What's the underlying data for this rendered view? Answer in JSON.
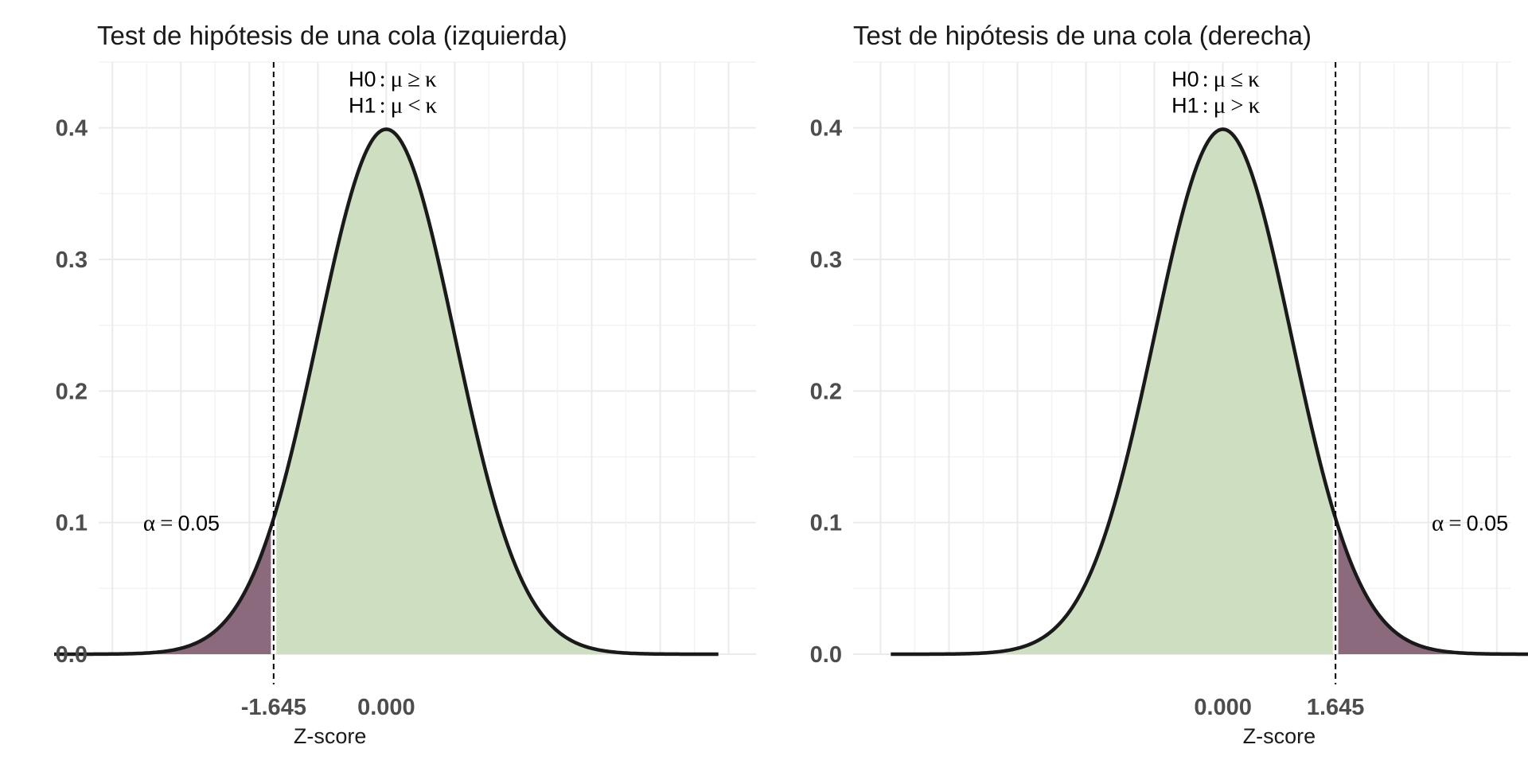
{
  "chart_data": [
    {
      "type": "area",
      "title": "Test de hipótesis de una cola (izquierda)",
      "xlabel": "Z-score",
      "ylabel": "",
      "xlim": [
        -4.2,
        5.4
      ],
      "curve_range": [
        -4.85,
        4.85
      ],
      "ylim": [
        0,
        0.45
      ],
      "yticks": [
        0.0,
        0.1,
        0.2,
        0.3,
        0.4
      ],
      "ytick_labels": [
        "0.0",
        "0.1",
        "0.2",
        "0.3",
        "0.4"
      ],
      "xticks": [
        -1.645,
        0.0
      ],
      "xtick_labels": [
        "-1.645",
        "0.000"
      ],
      "grid": true,
      "critical_value": -1.645,
      "rejection_side": "left",
      "alpha_label": {
        "alpha": "α",
        "eq": "=",
        "value": "0.05",
        "x": -3.55,
        "y": 0.1
      },
      "hypotheses": {
        "x": -0.55,
        "h0": {
          "name": "H0",
          "colon": ":",
          "mu": "μ",
          "op": "≥",
          "k": "κ",
          "y": 0.4375
        },
        "h1": {
          "name": "H1",
          "colon": ":",
          "mu": "μ",
          "op": "<",
          "k": "κ",
          "y": 0.4175
        }
      },
      "series": [
        {
          "values_desc": "standard normal density",
          "mean": 0,
          "sd": 1
        }
      ],
      "colors": {
        "accept": "#cddfc0",
        "reject": "#8b6a7e",
        "curve": "#1a1a1a",
        "grid": "#ebebeb"
      }
    },
    {
      "type": "area",
      "title": "Test de hipótesis de una cola (derecha)",
      "xlabel": "Z-score",
      "ylabel": "",
      "xlim": [
        -5.4,
        4.2
      ],
      "curve_range": [
        -4.85,
        4.85
      ],
      "ylim": [
        0,
        0.45
      ],
      "yticks": [
        0.0,
        0.1,
        0.2,
        0.3,
        0.4
      ],
      "ytick_labels": [
        "0.0",
        "0.1",
        "0.2",
        "0.3",
        "0.4"
      ],
      "xticks": [
        0.0,
        1.645
      ],
      "xtick_labels": [
        "0.000",
        "1.645"
      ],
      "grid": true,
      "critical_value": 1.645,
      "rejection_side": "right",
      "alpha_label": {
        "alpha": "α",
        "eq": "=",
        "value": "0.05",
        "x": 3.05,
        "y": 0.1
      },
      "hypotheses": {
        "x": -0.75,
        "h0": {
          "name": "H0",
          "colon": ":",
          "mu": "μ",
          "op": "≤",
          "k": "κ",
          "y": 0.4375
        },
        "h1": {
          "name": "H1",
          "colon": ":",
          "mu": "μ",
          "op": ">",
          "k": "κ",
          "y": 0.4175
        }
      },
      "series": [
        {
          "values_desc": "standard normal density",
          "mean": 0,
          "sd": 1
        }
      ],
      "colors": {
        "accept": "#cddfc0",
        "reject": "#8b6a7e",
        "curve": "#1a1a1a",
        "grid": "#ebebeb"
      }
    }
  ]
}
